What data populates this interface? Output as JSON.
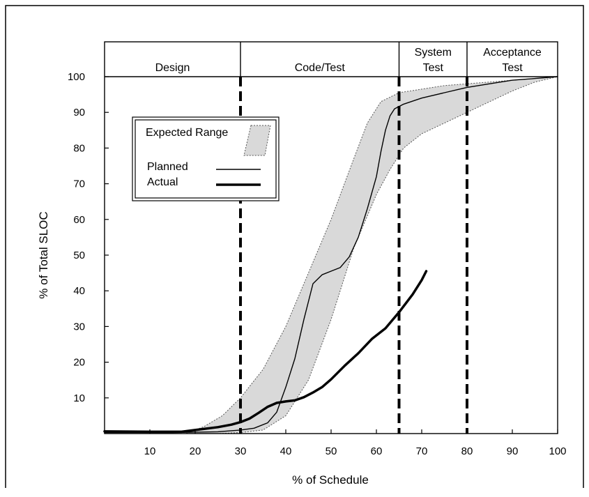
{
  "chart_data": {
    "type": "line",
    "title": "",
    "xlabel": "% of Schedule",
    "ylabel": "% of Total SLOC",
    "xlim": [
      0,
      100
    ],
    "ylim": [
      0,
      100
    ],
    "x_ticks": [
      "10",
      "20",
      "30",
      "40",
      "50",
      "60",
      "70",
      "80",
      "90",
      "100"
    ],
    "y_ticks": [
      "10",
      "20",
      "30",
      "40",
      "50",
      "60",
      "70",
      "80",
      "90",
      "100"
    ],
    "grid": false,
    "legend_placement": "upper-left",
    "phases": [
      {
        "label_lines": [
          "Design"
        ],
        "start": 0,
        "end": 30
      },
      {
        "label_lines": [
          "Code/Test"
        ],
        "start": 30,
        "end": 65
      },
      {
        "label_lines": [
          "System",
          "Test"
        ],
        "start": 65,
        "end": 80
      },
      {
        "label_lines": [
          "Acceptance",
          "Test"
        ],
        "start": 80,
        "end": 100
      }
    ],
    "phase_boundaries": [
      30,
      65,
      80
    ],
    "legend": {
      "range_label": "Expected Range",
      "planned_label": "Planned",
      "actual_label": "Actual"
    },
    "expected_range": {
      "upper": [
        [
          18,
          0
        ],
        [
          22,
          2
        ],
        [
          26,
          5
        ],
        [
          30,
          10
        ],
        [
          35,
          18
        ],
        [
          40,
          30
        ],
        [
          45,
          45
        ],
        [
          50,
          60
        ],
        [
          55,
          77
        ],
        [
          58,
          87
        ],
        [
          61,
          93
        ],
        [
          65,
          95.5
        ],
        [
          70,
          96.5
        ],
        [
          75,
          97.5
        ],
        [
          80,
          98
        ],
        [
          85,
          98.5
        ],
        [
          90,
          99
        ],
        [
          95,
          99.5
        ],
        [
          100,
          100
        ]
      ],
      "lower": [
        [
          18,
          0
        ],
        [
          25,
          0
        ],
        [
          30,
          0.3
        ],
        [
          35,
          1
        ],
        [
          40,
          5
        ],
        [
          45,
          15
        ],
        [
          50,
          32
        ],
        [
          55,
          52
        ],
        [
          60,
          67
        ],
        [
          63,
          74
        ],
        [
          66,
          80
        ],
        [
          70,
          84
        ],
        [
          75,
          87
        ],
        [
          80,
          90
        ],
        [
          85,
          93
        ],
        [
          90,
          96
        ],
        [
          95,
          98.5
        ],
        [
          100,
          100
        ]
      ],
      "fill": "#d9d9d9"
    },
    "series": [
      {
        "name": "Planned",
        "width": "thin",
        "points": [
          [
            0,
            0.3
          ],
          [
            15,
            0.3
          ],
          [
            25,
            0.5
          ],
          [
            30,
            1
          ],
          [
            33,
            1.5
          ],
          [
            36,
            3
          ],
          [
            38,
            6
          ],
          [
            40,
            13
          ],
          [
            42,
            21
          ],
          [
            44,
            32
          ],
          [
            46,
            42
          ],
          [
            48,
            44.5
          ],
          [
            50,
            45.5
          ],
          [
            52,
            46.5
          ],
          [
            54,
            49.5
          ],
          [
            56,
            55
          ],
          [
            58,
            63
          ],
          [
            60,
            72
          ],
          [
            61,
            79
          ],
          [
            62,
            85
          ],
          [
            63,
            89
          ],
          [
            64,
            91
          ],
          [
            66,
            92.3
          ],
          [
            70,
            94
          ],
          [
            75,
            95.5
          ],
          [
            80,
            97
          ],
          [
            85,
            98
          ],
          [
            90,
            99
          ],
          [
            95,
            99.5
          ],
          [
            100,
            100
          ]
        ]
      },
      {
        "name": "Actual",
        "width": "thick",
        "points": [
          [
            0,
            0.6
          ],
          [
            10,
            0.5
          ],
          [
            17,
            0.5
          ],
          [
            20,
            1
          ],
          [
            25,
            1.8
          ],
          [
            28,
            2.5
          ],
          [
            30,
            3.2
          ],
          [
            32,
            4.2
          ],
          [
            34,
            5.8
          ],
          [
            36,
            7.5
          ],
          [
            38,
            8.6
          ],
          [
            40,
            9
          ],
          [
            42,
            9.3
          ],
          [
            44,
            10.2
          ],
          [
            46,
            11.5
          ],
          [
            48,
            13
          ],
          [
            50,
            15.2
          ],
          [
            53,
            19
          ],
          [
            56,
            22.5
          ],
          [
            59,
            26.5
          ],
          [
            62,
            29.5
          ],
          [
            65,
            34
          ],
          [
            68,
            39
          ],
          [
            70,
            43
          ],
          [
            71,
            45.5
          ]
        ]
      }
    ]
  }
}
